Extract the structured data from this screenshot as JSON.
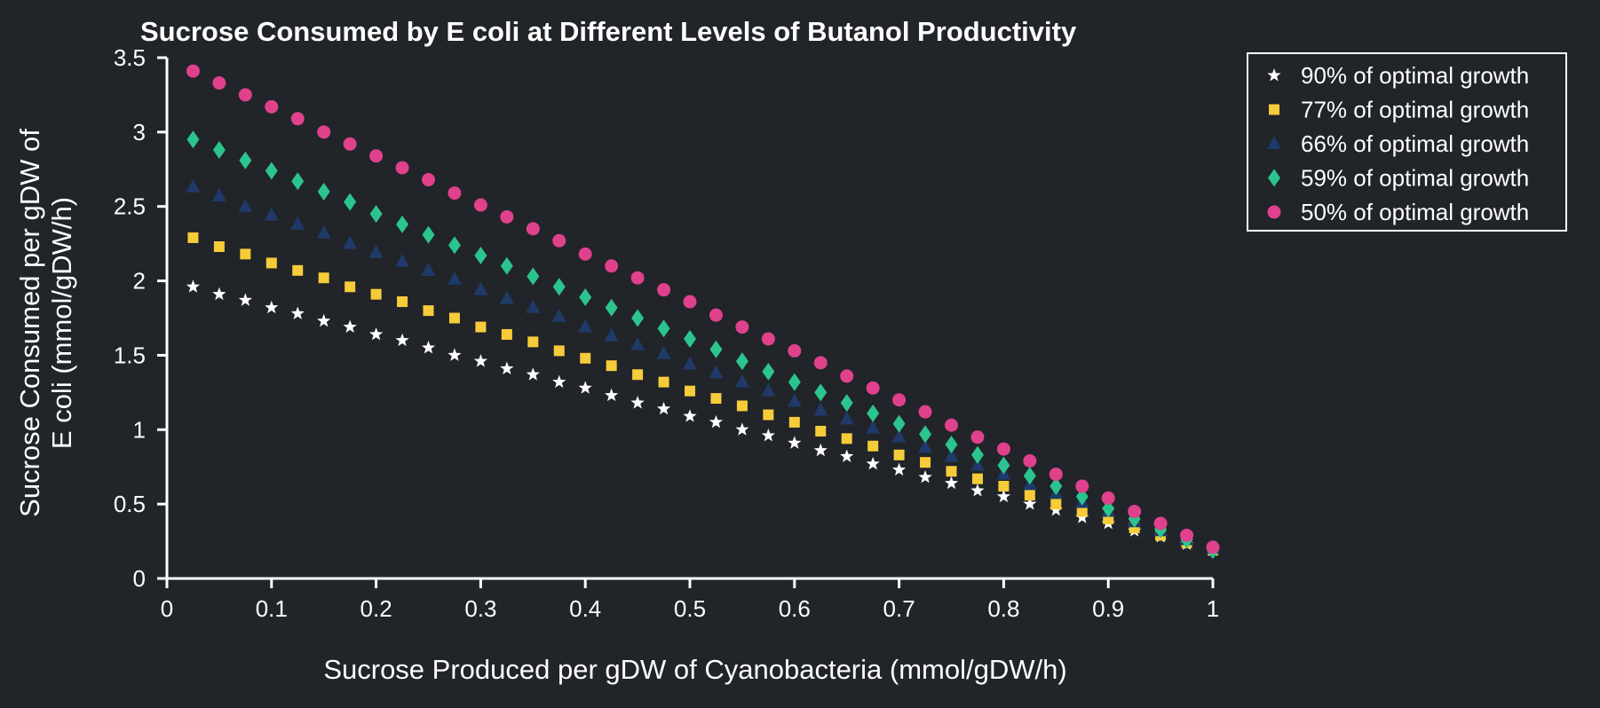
{
  "chart_data": {
    "type": "scatter",
    "title": "Sucrose Consumed by E coli at Different Levels of Butanol Productivity",
    "xlabel": "Sucrose Produced per gDW of Cyanobacteria (mmol/gDW/h)",
    "ylabel_lines": [
      "Sucrose Consumed per gDW of",
      "E coli (mmol/gDW/h)"
    ],
    "xlim": [
      0,
      1
    ],
    "ylim": [
      0,
      3.5
    ],
    "xticks": [
      0,
      0.1,
      0.2,
      0.3,
      0.4,
      0.5,
      0.6,
      0.7,
      0.8,
      0.9,
      1
    ],
    "xtick_labels": [
      "0",
      "0.1",
      "0.2",
      "0.3",
      "0.4",
      "0.5",
      "0.6",
      "0.7",
      "0.8",
      "0.9",
      "1"
    ],
    "yticks": [
      0,
      0.5,
      1,
      1.5,
      2,
      2.5,
      3,
      3.5
    ],
    "ytick_labels": [
      "0",
      "0.5",
      "1",
      "1.5",
      "2",
      "2.5",
      "3",
      "3.5"
    ],
    "grid": false,
    "legend_position": "outside-top-right",
    "x": [
      0.025,
      0.05,
      0.075,
      0.1,
      0.125,
      0.15,
      0.175,
      0.2,
      0.225,
      0.25,
      0.275,
      0.3,
      0.325,
      0.35,
      0.375,
      0.4,
      0.425,
      0.45,
      0.475,
      0.5,
      0.525,
      0.55,
      0.575,
      0.6,
      0.625,
      0.65,
      0.675,
      0.7,
      0.725,
      0.75,
      0.775,
      0.8,
      0.825,
      0.85,
      0.875,
      0.9,
      0.925,
      0.95,
      0.975,
      1.0
    ],
    "series": [
      {
        "name": "90% of optimal growth",
        "marker": "star",
        "color": "#ffffff",
        "values": [
          1.96,
          1.91,
          1.87,
          1.82,
          1.78,
          1.73,
          1.69,
          1.64,
          1.6,
          1.55,
          1.5,
          1.46,
          1.41,
          1.37,
          1.32,
          1.28,
          1.23,
          1.18,
          1.14,
          1.09,
          1.05,
          1.0,
          0.96,
          0.91,
          0.86,
          0.82,
          0.77,
          0.73,
          0.68,
          0.64,
          0.59,
          0.55,
          0.5,
          0.46,
          0.41,
          0.37,
          0.32,
          0.28,
          0.23,
          0.19
        ]
      },
      {
        "name": "77% of optimal growth",
        "marker": "square",
        "color": "#f7cc3a",
        "values": [
          2.29,
          2.23,
          2.18,
          2.12,
          2.07,
          2.02,
          1.96,
          1.91,
          1.86,
          1.8,
          1.75,
          1.69,
          1.64,
          1.59,
          1.53,
          1.48,
          1.43,
          1.37,
          1.32,
          1.26,
          1.21,
          1.16,
          1.1,
          1.05,
          0.99,
          0.94,
          0.89,
          0.83,
          0.78,
          0.72,
          0.67,
          0.62,
          0.56,
          0.5,
          0.45,
          0.4,
          0.34,
          0.29,
          0.24,
          0.19
        ]
      },
      {
        "name": "66% of optimal growth",
        "marker": "triangle",
        "color": "#1f3a68",
        "values": [
          2.63,
          2.57,
          2.5,
          2.44,
          2.38,
          2.32,
          2.25,
          2.19,
          2.13,
          2.07,
          2.01,
          1.94,
          1.88,
          1.82,
          1.76,
          1.69,
          1.63,
          1.57,
          1.51,
          1.44,
          1.38,
          1.32,
          1.26,
          1.19,
          1.13,
          1.07,
          1.01,
          0.95,
          0.88,
          0.82,
          0.76,
          0.7,
          0.63,
          0.57,
          0.51,
          0.45,
          0.38,
          0.32,
          0.26,
          0.2
        ]
      },
      {
        "name": "59% of optimal growth",
        "marker": "diamond",
        "color": "#2bc48f",
        "values": [
          2.95,
          2.88,
          2.81,
          2.74,
          2.67,
          2.6,
          2.53,
          2.45,
          2.38,
          2.31,
          2.24,
          2.17,
          2.1,
          2.03,
          1.96,
          1.89,
          1.82,
          1.75,
          1.68,
          1.61,
          1.54,
          1.46,
          1.39,
          1.32,
          1.25,
          1.18,
          1.11,
          1.04,
          0.97,
          0.9,
          0.83,
          0.76,
          0.69,
          0.62,
          0.55,
          0.47,
          0.4,
          0.33,
          0.26,
          0.19
        ]
      },
      {
        "name": "50% of optimal growth",
        "marker": "circle",
        "color": "#e0418c",
        "values": [
          3.41,
          3.33,
          3.25,
          3.17,
          3.09,
          3.0,
          2.92,
          2.84,
          2.76,
          2.68,
          2.59,
          2.51,
          2.43,
          2.35,
          2.27,
          2.18,
          2.1,
          2.02,
          1.94,
          1.86,
          1.77,
          1.69,
          1.61,
          1.53,
          1.45,
          1.36,
          1.28,
          1.2,
          1.12,
          1.03,
          0.95,
          0.87,
          0.79,
          0.7,
          0.62,
          0.54,
          0.45,
          0.37,
          0.29,
          0.21
        ]
      }
    ]
  }
}
